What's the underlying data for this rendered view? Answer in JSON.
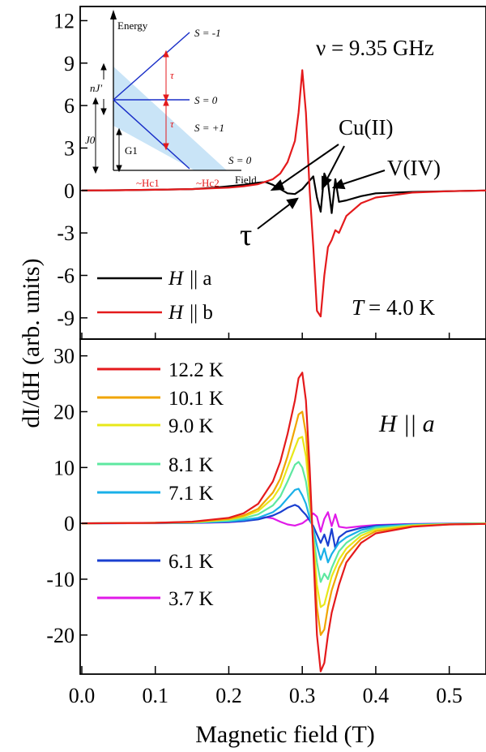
{
  "xlabel": "Magnetic field (T)",
  "ylabel": "dI/dH (arb. units)",
  "x_ticks": [
    "0.0",
    "0.1",
    "0.2",
    "0.3",
    "0.4",
    "0.5"
  ],
  "top": {
    "freq": "ν = 9.35 GHz",
    "temp_prefix": "T",
    "temp_value": "= 4.0 K",
    "y_ticks": [
      "12",
      "9",
      "6",
      "3",
      "0",
      "-3",
      "-6",
      "-9"
    ],
    "ann_cu": "Cu(II)",
    "ann_v": "V(IV)",
    "ann_tau": "τ",
    "legend": [
      {
        "prefix": "H",
        "suffix": "|| a",
        "color": "#000000"
      },
      {
        "prefix": "H",
        "suffix": "|| b",
        "color": "#e41a1c"
      }
    ]
  },
  "bottom": {
    "label_prefix": "H",
    "label_suffix": "|| a",
    "y_ticks": [
      "30",
      "20",
      "10",
      "0",
      "-10",
      "-20"
    ],
    "legend": [
      {
        "label": "12.2 K",
        "color": "#e41a1c"
      },
      {
        "label": "10.1 K",
        "color": "#f0a500"
      },
      {
        "label": "9.0 K",
        "color": "#e8e81a"
      },
      {
        "label": "8.1 K",
        "color": "#5ee8a0"
      },
      {
        "label": "7.1 K",
        "color": "#1ab0e8"
      },
      {
        "label": "6.1 K",
        "color": "#1a3fd0"
      },
      {
        "label": "3.7 K",
        "color": "#e01ae8"
      }
    ]
  },
  "inset": {
    "energy": "Energy",
    "field": "Field",
    "sz_m1": "S = -1",
    "sz_0": "S = 0",
    "sz_p1": "S = +1",
    "s0": "S = 0",
    "tau1": "τ",
    "tau2": "τ",
    "nj": "nJ'",
    "j0": "J0",
    "g1": "G1",
    "hc1": "~Hc1",
    "hc2": "~Hc2"
  },
  "chart_data": [
    {
      "type": "line",
      "panel": "top",
      "xlabel": "Magnetic field (T)",
      "ylabel": "dI/dH (arb. units)",
      "xlim": [
        0.0,
        0.55
      ],
      "ylim": [
        -10.5,
        13
      ],
      "series": [
        {
          "name": "H || a",
          "color": "#000000",
          "x": [
            0.0,
            0.05,
            0.1,
            0.15,
            0.18,
            0.2,
            0.22,
            0.24,
            0.25,
            0.26,
            0.27,
            0.28,
            0.29,
            0.3,
            0.31,
            0.315,
            0.32,
            0.325,
            0.33,
            0.335,
            0.34,
            0.345,
            0.35,
            0.36,
            0.38,
            0.4,
            0.45,
            0.5,
            0.55
          ],
          "y": [
            0.0,
            0.02,
            0.05,
            0.1,
            0.2,
            0.3,
            0.4,
            0.55,
            0.6,
            0.4,
            0.1,
            -0.2,
            -0.25,
            0.1,
            0.7,
            1.0,
            -0.5,
            -1.5,
            1.2,
            0.6,
            -1.6,
            0.8,
            -0.8,
            -0.7,
            -0.4,
            -0.2,
            -0.1,
            -0.05,
            0.0
          ]
        },
        {
          "name": "H || b",
          "color": "#e41a1c",
          "x": [
            0.0,
            0.05,
            0.1,
            0.15,
            0.2,
            0.22,
            0.24,
            0.26,
            0.27,
            0.28,
            0.29,
            0.295,
            0.3,
            0.305,
            0.31,
            0.315,
            0.32,
            0.325,
            0.33,
            0.335,
            0.34,
            0.345,
            0.35,
            0.36,
            0.38,
            0.4,
            0.45,
            0.5,
            0.55
          ],
          "y": [
            0.0,
            0.02,
            0.05,
            0.1,
            0.2,
            0.3,
            0.45,
            0.8,
            1.2,
            2.0,
            3.5,
            5.5,
            8.5,
            5.5,
            0.0,
            -4.0,
            -8.5,
            -8.9,
            -6.0,
            -4.0,
            -3.5,
            -2.8,
            -3.0,
            -1.8,
            -0.9,
            -0.5,
            -0.15,
            -0.05,
            0.0
          ]
        }
      ]
    },
    {
      "type": "line",
      "panel": "bottom",
      "xlabel": "Magnetic field (T)",
      "ylabel": "dI/dH (arb. units)",
      "xlim": [
        0.0,
        0.55
      ],
      "ylim": [
        -27,
        33
      ],
      "series": [
        {
          "name": "12.2 K",
          "color": "#e41a1c",
          "x": [
            0.0,
            0.1,
            0.15,
            0.2,
            0.22,
            0.24,
            0.26,
            0.27,
            0.28,
            0.29,
            0.295,
            0.3,
            0.305,
            0.31,
            0.315,
            0.32,
            0.325,
            0.33,
            0.335,
            0.34,
            0.35,
            0.36,
            0.38,
            0.4,
            0.45,
            0.5,
            0.55
          ],
          "y": [
            0,
            0.1,
            0.3,
            1.0,
            1.8,
            3.5,
            7.5,
            11,
            16,
            22,
            26,
            27,
            22,
            10,
            -5,
            -20,
            -26.5,
            -25,
            -20,
            -16,
            -11,
            -7,
            -3.5,
            -1.8,
            -0.6,
            -0.2,
            -0.1
          ]
        },
        {
          "name": "10.1 K",
          "color": "#f0a500",
          "x": [
            0.0,
            0.1,
            0.15,
            0.2,
            0.22,
            0.24,
            0.26,
            0.27,
            0.28,
            0.29,
            0.295,
            0.3,
            0.305,
            0.31,
            0.315,
            0.32,
            0.325,
            0.33,
            0.335,
            0.34,
            0.35,
            0.36,
            0.38,
            0.4,
            0.45,
            0.5,
            0.55
          ],
          "y": [
            0,
            0.1,
            0.25,
            0.8,
            1.4,
            2.6,
            5.5,
            8,
            12,
            17,
            19.5,
            20,
            16,
            7,
            -4,
            -15,
            -20,
            -19,
            -15,
            -12,
            -8,
            -5.5,
            -2.8,
            -1.4,
            -0.5,
            -0.2,
            -0.1
          ]
        },
        {
          "name": "9.0 K",
          "color": "#e8e81a",
          "x": [
            0.0,
            0.1,
            0.15,
            0.2,
            0.22,
            0.24,
            0.26,
            0.27,
            0.28,
            0.29,
            0.295,
            0.3,
            0.305,
            0.31,
            0.315,
            0.32,
            0.325,
            0.33,
            0.335,
            0.34,
            0.35,
            0.36,
            0.38,
            0.4,
            0.45,
            0.5,
            0.55
          ],
          "y": [
            0,
            0.1,
            0.2,
            0.7,
            1.2,
            2.2,
            4.5,
            6.5,
            10,
            13.5,
            15.2,
            15.5,
            12,
            5,
            -3,
            -11,
            -15,
            -14.5,
            -12,
            -9.5,
            -6.5,
            -4.5,
            -2.2,
            -1.1,
            -0.4,
            -0.15,
            -0.05
          ]
        },
        {
          "name": "8.1 K",
          "color": "#5ee8a0",
          "x": [
            0.0,
            0.1,
            0.15,
            0.2,
            0.22,
            0.24,
            0.26,
            0.27,
            0.28,
            0.29,
            0.295,
            0.3,
            0.305,
            0.31,
            0.315,
            0.32,
            0.325,
            0.33,
            0.335,
            0.34,
            0.35,
            0.36,
            0.38,
            0.4,
            0.45,
            0.5,
            0.55
          ],
          "y": [
            0,
            0.1,
            0.15,
            0.5,
            0.9,
            1.6,
            3.2,
            4.8,
            7.5,
            10.5,
            11,
            10,
            7.5,
            3,
            -2,
            -7,
            -10.5,
            -9,
            -10,
            -8,
            -5,
            -3.5,
            -1.7,
            -0.8,
            -0.3,
            -0.1,
            0
          ]
        },
        {
          "name": "7.1 K",
          "color": "#1ab0e8",
          "x": [
            0.0,
            0.1,
            0.15,
            0.2,
            0.22,
            0.24,
            0.26,
            0.27,
            0.28,
            0.29,
            0.295,
            0.3,
            0.305,
            0.31,
            0.315,
            0.32,
            0.325,
            0.33,
            0.335,
            0.34,
            0.35,
            0.36,
            0.38,
            0.4,
            0.45,
            0.5,
            0.55
          ],
          "y": [
            0,
            0.05,
            0.1,
            0.35,
            0.6,
            1.0,
            2.0,
            3.0,
            4.5,
            6,
            6.2,
            5,
            3.5,
            1,
            -1,
            -4,
            -6.5,
            -4.5,
            -7,
            -5.5,
            -3.5,
            -2.5,
            -1.2,
            -0.6,
            -0.2,
            -0.1,
            0
          ]
        },
        {
          "name": "6.1 K",
          "color": "#1a3fd0",
          "x": [
            0.0,
            0.1,
            0.15,
            0.2,
            0.22,
            0.24,
            0.26,
            0.27,
            0.28,
            0.29,
            0.295,
            0.3,
            0.305,
            0.31,
            0.315,
            0.32,
            0.325,
            0.33,
            0.335,
            0.34,
            0.345,
            0.35,
            0.36,
            0.38,
            0.4,
            0.45,
            0.5,
            0.55
          ],
          "y": [
            0,
            0.05,
            0.1,
            0.25,
            0.4,
            0.7,
            1.4,
            2,
            2.8,
            3.3,
            3,
            2.2,
            1.5,
            0.5,
            -0.5,
            -2,
            -3.5,
            -2,
            -4,
            -1,
            -4.5,
            -2.5,
            -1.5,
            -0.8,
            -0.4,
            -0.15,
            -0.05,
            0
          ]
        },
        {
          "name": "3.7 K",
          "color": "#e01ae8",
          "x": [
            0.0,
            0.1,
            0.15,
            0.2,
            0.22,
            0.24,
            0.25,
            0.26,
            0.27,
            0.28,
            0.29,
            0.3,
            0.31,
            0.315,
            0.32,
            0.325,
            0.33,
            0.335,
            0.34,
            0.345,
            0.35,
            0.36,
            0.38,
            0.4,
            0.45,
            0.5,
            0.55
          ],
          "y": [
            0,
            0.02,
            0.05,
            0.2,
            0.4,
            0.8,
            1.1,
            0.9,
            0.3,
            -0.2,
            -0.4,
            0,
            1.0,
            1.8,
            1.2,
            -1.5,
            0.8,
            2.0,
            -0.5,
            1.6,
            -0.6,
            -0.8,
            -0.5,
            -0.3,
            -0.1,
            -0.05,
            0
          ]
        }
      ]
    }
  ]
}
